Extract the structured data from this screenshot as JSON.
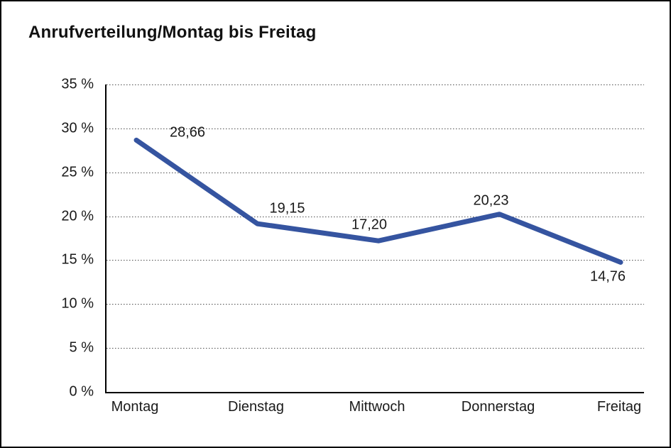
{
  "title": "Anrufverteilung/Montag bis Freitag",
  "colors": {
    "line": "#3554A0",
    "grid": "#4D4D4D",
    "axis": "#000000",
    "text": "#1A1A1A",
    "background": "#FFFFFF"
  },
  "chart_data": {
    "type": "line",
    "title": "Anrufverteilung/Montag bis Freitag",
    "categories": [
      "Montag",
      "Dienstag",
      "Mittwoch",
      "Donnerstag",
      "Freitag"
    ],
    "values": [
      28.66,
      19.15,
      17.2,
      20.23,
      14.76
    ],
    "point_labels": [
      "28,66",
      "19,15",
      "17,20",
      "20,23",
      "14,76"
    ],
    "xlabel": "",
    "ylabel": "",
    "ylim": [
      0,
      35
    ],
    "y_tick_step": 5,
    "y_tick_labels": [
      "0 %",
      "5 %",
      "10 %",
      "15 %",
      "20 %",
      "25 %",
      "30 %",
      "35 %"
    ],
    "grid": "horizontal-dotted",
    "legend": "none",
    "series_name": "Anrufverteilung"
  }
}
